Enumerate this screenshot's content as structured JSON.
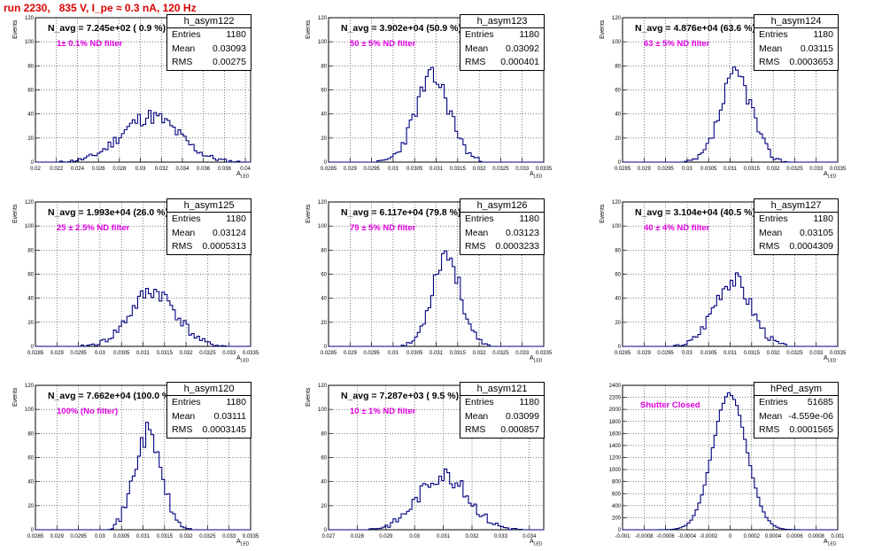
{
  "header": {
    "run_title": "run 2230,   835 V, I_pe ≈ 0.3 nA, 120 Hz"
  },
  "colors": {
    "histogram_line": "#000080",
    "title": "#dd0000",
    "annotation": "#e000e0"
  },
  "chart_data": [
    {
      "type": "bar",
      "name": "h_asym122",
      "stats": {
        "entries": "1180",
        "mean": "0.03093",
        "rms": "0.00275"
      },
      "navg_label": "N_avg = 7.245e+02 ( 0.9 %)",
      "filter_label": "1± 0.1% ND filter",
      "xlabel": "A_LED",
      "ylabel": "Events",
      "xlim": [
        0.02,
        0.0405
      ],
      "ylim": [
        0,
        120
      ],
      "xticks": [
        "0.02",
        "0.022",
        "0.024",
        "0.026",
        "0.028",
        "0.03",
        "0.032",
        "0.034",
        "0.036",
        "0.038",
        "0.04"
      ],
      "xtick_values": [
        0.02,
        0.022,
        0.024,
        0.026,
        0.028,
        0.03,
        0.032,
        0.034,
        0.036,
        0.038,
        0.04
      ],
      "yticks": [
        0,
        20,
        40,
        60,
        80,
        100,
        120
      ],
      "mean": 0.03093,
      "sigma": 0.00275,
      "peak": 38,
      "seed": 11
    },
    {
      "type": "bar",
      "name": "h_asym123",
      "stats": {
        "entries": "1180",
        "mean": "0.03092",
        "rms": "0.000401"
      },
      "navg_label": "N_avg = 3.902e+04 (50.9 %)",
      "filter_label": "50 ± 5% ND filter",
      "xlabel": "A_LED",
      "ylabel": "Events",
      "xlim": [
        0.0285,
        0.0335
      ],
      "ylim": [
        0,
        120
      ],
      "xticks": [
        "0.0285",
        "0.029",
        "0.0295",
        "0.03",
        "0.0305",
        "0.031",
        "0.0315",
        "0.032",
        "0.0325",
        "0.033",
        "0.0335"
      ],
      "xtick_values": [
        0.0285,
        0.029,
        0.0295,
        0.03,
        0.0305,
        0.031,
        0.0315,
        0.032,
        0.0325,
        0.033,
        0.0335
      ],
      "yticks": [
        0,
        20,
        40,
        60,
        80,
        100,
        120
      ],
      "mean": 0.03092,
      "sigma": 0.000401,
      "peak": 70,
      "seed": 23
    },
    {
      "type": "bar",
      "name": "h_asym124",
      "stats": {
        "entries": "1180",
        "mean": "0.03115",
        "rms": "0.0003653"
      },
      "navg_label": "N_avg = 4.876e+04 (63.6 %)",
      "filter_label": "63 ± 5% ND filter",
      "xlabel": "A_LED",
      "ylabel": "Events",
      "xlim": [
        0.0285,
        0.0335
      ],
      "ylim": [
        0,
        120
      ],
      "xticks": [
        "0.0285",
        "0.029",
        "0.0295",
        "0.03",
        "0.0305",
        "0.031",
        "0.0315",
        "0.032",
        "0.0325",
        "0.033",
        "0.0335"
      ],
      "xtick_values": [
        0.0285,
        0.029,
        0.0295,
        0.03,
        0.0305,
        0.031,
        0.0315,
        0.032,
        0.0325,
        0.033,
        0.0335
      ],
      "yticks": [
        0,
        20,
        40,
        60,
        80,
        100,
        120
      ],
      "mean": 0.03115,
      "sigma": 0.0003653,
      "peak": 72,
      "seed": 37
    },
    {
      "type": "bar",
      "name": "h_asym125",
      "stats": {
        "entries": "1180",
        "mean": "0.03124",
        "rms": "0.0005313"
      },
      "navg_label": "N_avg = 1.993e+04 (26.0 %)",
      "filter_label": "25 ± 2.5% ND filter",
      "xlabel": "A_LED",
      "ylabel": "Events",
      "xlim": [
        0.0285,
        0.0335
      ],
      "ylim": [
        0,
        120
      ],
      "xticks": [
        "0.0285",
        "0.029",
        "0.0295",
        "0.03",
        "0.0305",
        "0.031",
        "0.0315",
        "0.032",
        "0.0325",
        "0.033",
        "0.0335"
      ],
      "xtick_values": [
        0.0285,
        0.029,
        0.0295,
        0.03,
        0.0305,
        0.031,
        0.0315,
        0.032,
        0.0325,
        0.033,
        0.0335
      ],
      "yticks": [
        0,
        20,
        40,
        60,
        80,
        100,
        120
      ],
      "mean": 0.03124,
      "sigma": 0.0005313,
      "peak": 46,
      "seed": 41
    },
    {
      "type": "bar",
      "name": "h_asym126",
      "stats": {
        "entries": "1180",
        "mean": "0.03123",
        "rms": "0.0003233"
      },
      "navg_label": "N_avg = 6.117e+04 (79.8 %)",
      "filter_label": "79 ± 5% ND filter",
      "xlabel": "A_LED",
      "ylabel": "Events",
      "xlim": [
        0.0285,
        0.0335
      ],
      "ylim": [
        0,
        120
      ],
      "xticks": [
        "0.0285",
        "0.029",
        "0.0295",
        "0.03",
        "0.0305",
        "0.031",
        "0.0315",
        "0.032",
        "0.0325",
        "0.033",
        "0.0335"
      ],
      "xtick_values": [
        0.0285,
        0.029,
        0.0295,
        0.03,
        0.0305,
        0.031,
        0.0315,
        0.032,
        0.0325,
        0.033,
        0.0335
      ],
      "yticks": [
        0,
        20,
        40,
        60,
        80,
        100,
        120
      ],
      "mean": 0.03123,
      "sigma": 0.0003233,
      "peak": 78,
      "seed": 53
    },
    {
      "type": "bar",
      "name": "h_asym127",
      "stats": {
        "entries": "1180",
        "mean": "0.03105",
        "rms": "0.0004309"
      },
      "navg_label": "N_avg = 3.104e+04 (40.5 %)",
      "filter_label": "40 ± 4% ND filter",
      "xlabel": "A_LED",
      "ylabel": "Events",
      "xlim": [
        0.0285,
        0.0335
      ],
      "ylim": [
        0,
        120
      ],
      "xticks": [
        "0.0285",
        "0.029",
        "0.0295",
        "0.03",
        "0.0305",
        "0.031",
        "0.0315",
        "0.032",
        "0.0325",
        "0.033",
        "0.0335"
      ],
      "xtick_values": [
        0.0285,
        0.029,
        0.0295,
        0.03,
        0.0305,
        0.031,
        0.0315,
        0.032,
        0.0325,
        0.033,
        0.0335
      ],
      "yticks": [
        0,
        20,
        40,
        60,
        80,
        100,
        120
      ],
      "mean": 0.03105,
      "sigma": 0.0004309,
      "peak": 56,
      "seed": 67
    },
    {
      "type": "bar",
      "name": "h_asym120",
      "stats": {
        "entries": "1180",
        "mean": "0.03111",
        "rms": "0.0003145"
      },
      "navg_label": "N_avg = 7.662e+04 (100.0 %)",
      "filter_label": "100% (No filter)",
      "xlabel": "A_LED",
      "ylabel": "Events",
      "xlim": [
        0.0285,
        0.0335
      ],
      "ylim": [
        0,
        120
      ],
      "xticks": [
        "0.0285",
        "0.029",
        "0.0295",
        "0.03",
        "0.0305",
        "0.031",
        "0.0315",
        "0.032",
        "0.0325",
        "0.033",
        "0.0335"
      ],
      "xtick_values": [
        0.0285,
        0.029,
        0.0295,
        0.03,
        0.0305,
        0.031,
        0.0315,
        0.032,
        0.0325,
        0.033,
        0.0335
      ],
      "yticks": [
        0,
        20,
        40,
        60,
        80,
        100,
        120
      ],
      "mean": 0.03111,
      "sigma": 0.0003145,
      "peak": 80,
      "seed": 71
    },
    {
      "type": "bar",
      "name": "h_asym121",
      "stats": {
        "entries": "1180",
        "mean": "0.03099",
        "rms": "0.000857"
      },
      "navg_label": "N_avg = 7.287e+03 ( 9.5 %)",
      "filter_label": "10 ± 1% ND filter",
      "xlabel": "A_LED",
      "ylabel": "Events",
      "xlim": [
        0.027,
        0.0345
      ],
      "ylim": [
        0,
        120
      ],
      "xticks": [
        "0.027",
        "0.028",
        "0.029",
        "0.03",
        "0.031",
        "0.032",
        "0.033",
        "0.034"
      ],
      "xtick_values": [
        0.027,
        0.028,
        0.029,
        0.03,
        0.031,
        0.032,
        0.033,
        0.034
      ],
      "yticks": [
        0,
        20,
        40,
        60,
        80,
        100,
        120
      ],
      "mean": 0.03099,
      "sigma": 0.000857,
      "peak": 46,
      "seed": 83
    },
    {
      "type": "bar",
      "name": "hPed_asym",
      "stats": {
        "entries": "51685",
        "mean": "-4.559e-06",
        "rms": "0.0001565"
      },
      "navg_label": "",
      "filter_label": "Shutter Closed",
      "xlabel": "A_LED",
      "ylabel": "",
      "xlim": [
        -0.001,
        0.001
      ],
      "ylim": [
        0,
        2400
      ],
      "xticks": [
        "-0.001",
        "-0.0008",
        "-0.0006",
        "-0.0004",
        "-0.0002",
        "0",
        "0.0002",
        "0.0004",
        "0.0006",
        "0.0008",
        "0.001"
      ],
      "xtick_values": [
        -0.001,
        -0.0008,
        -0.0006,
        -0.0004,
        -0.0002,
        0,
        0.0002,
        0.0004,
        0.0006,
        0.0008,
        0.001
      ],
      "yticks": [
        0,
        200,
        400,
        600,
        800,
        1000,
        1200,
        1400,
        1600,
        1800,
        2000,
        2200,
        2400
      ],
      "mean": -4.559e-06,
      "sigma": 0.0001565,
      "peak": 2270,
      "seed": 97
    }
  ]
}
